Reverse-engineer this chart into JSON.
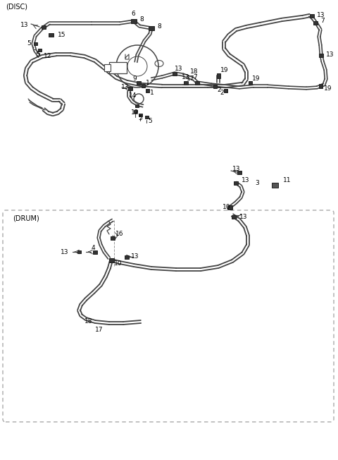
{
  "bg_color": "#ffffff",
  "line_color": "#444444",
  "text_color": "#000000",
  "title_disc": "(DISC)",
  "title_drum": "(DRUM)",
  "fig_width": 4.8,
  "fig_height": 6.52,
  "dpi": 100
}
